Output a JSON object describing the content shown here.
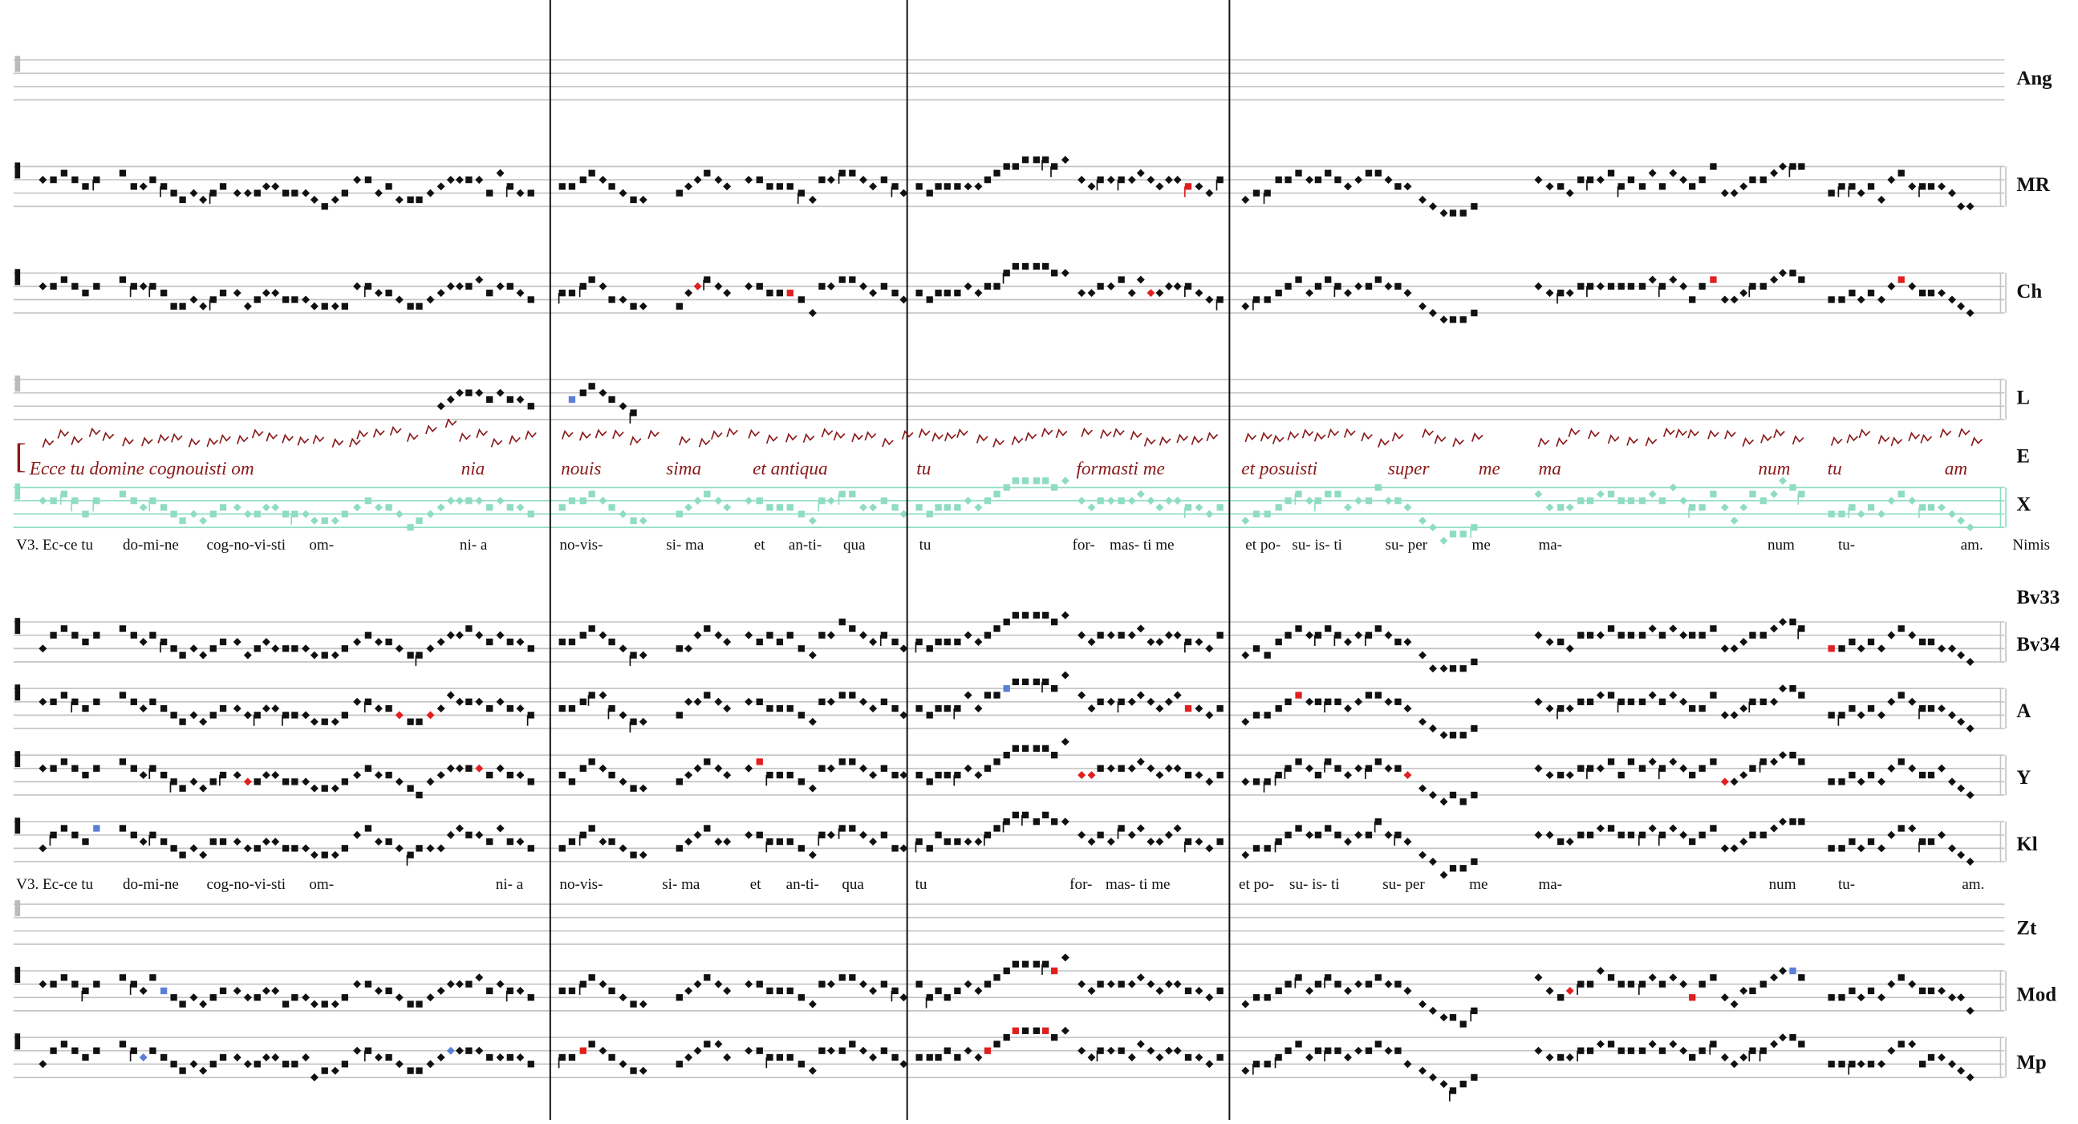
{
  "staves": [
    "Ang",
    "MR",
    "Ch",
    "L",
    "E",
    "X",
    "Bv33",
    "Bv34",
    "A",
    "Y",
    "Kl",
    "Zt",
    "Mod",
    "Mp"
  ],
  "lyrics_upper": [
    "V3. Ec-ce tu",
    "do-mi-ne",
    "cog-no-vi-sti",
    "om-",
    "ni- a",
    "no-vis-",
    "si- ma",
    "et",
    "an-ti-",
    "qua",
    "tu",
    "for-",
    "mas- ti me",
    "et po-",
    "su- is- ti",
    "su- per",
    "me",
    "ma-",
    "num",
    "tu-",
    "am."
  ],
  "note": "Nimis",
  "manuscript": [
    "Ecce tu domine cognouisti om",
    "nia",
    "nouis",
    "sima",
    "et antiqua",
    "tu",
    "formasti me",
    "et posuisti",
    "super",
    "me",
    "ma",
    "num",
    "tu",
    "am"
  ],
  "lyrics_lower": [
    "V3. Ec-ce tu",
    "do-mi-ne",
    "cog-no-vi-sti",
    "om-",
    "ni- a",
    "no-vis-",
    "si- ma",
    "et",
    "an-ti-",
    "qua",
    "tu",
    "for-",
    "mas- ti me",
    "et po-",
    "su- is- ti",
    "su- per",
    "me",
    "ma-",
    "num",
    "tu-",
    "am."
  ]
}
